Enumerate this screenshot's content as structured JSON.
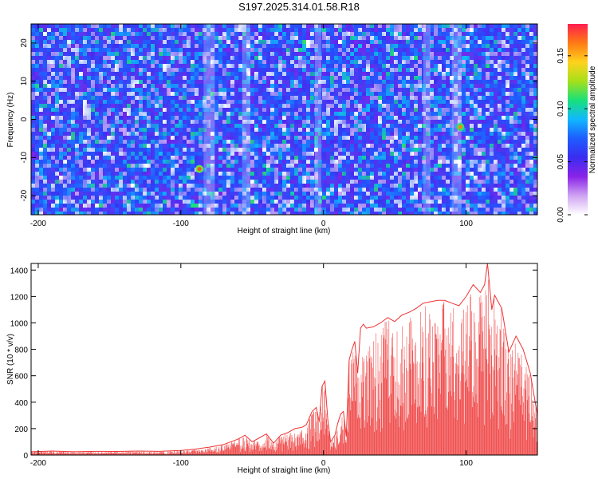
{
  "title": "S197.2025.314.01.58.R18",
  "colors": {
    "snr_line": "#ee3333",
    "spectrogram_background": "#8a22e8",
    "spectrogram_colormap": [
      "#ffffff",
      "#cfa3f2",
      "#8a22e8",
      "#3a2df0",
      "#1e5cff",
      "#10b8ff",
      "#18e07a",
      "#a6e01a",
      "#ffd21e",
      "#ff7a14",
      "#ff1e4e"
    ]
  },
  "chart_data": [
    {
      "type": "heatmap",
      "title": "",
      "xlabel": "Height of straight line (km)",
      "ylabel": "Frequency (Hz)",
      "xlim": [
        -205,
        150
      ],
      "ylim": [
        -25,
        25
      ],
      "xticks": [
        -200,
        -100,
        0,
        100
      ],
      "yticks": [
        -20,
        -10,
        0,
        10,
        20
      ],
      "colorbar": {
        "label": "Normalized spectral amplitude",
        "range": [
          0,
          0.18
        ],
        "ticks": [
          "0.00",
          "0.05",
          "0.10",
          "0.15"
        ],
        "tick_values": [
          0,
          0.05,
          0.1,
          0.15
        ]
      },
      "grid": false,
      "description_of_values": "dense speckled noise field, amplitude mostly 0.01-0.06",
      "peaks": [
        {
          "x": -87,
          "y": -13,
          "value": 0.17
        },
        {
          "x": 96,
          "y": -2,
          "value": 0.16
        },
        {
          "x": 18,
          "y": 24,
          "value": 0.06
        }
      ]
    },
    {
      "type": "line",
      "title": "",
      "xlabel": "Height of straight line (km)",
      "ylabel": "SNR (10 * v/v)",
      "xlim": [
        -205,
        150
      ],
      "ylim": [
        0,
        1450
      ],
      "xticks": [
        -200,
        -100,
        0,
        100
      ],
      "yticks": [
        0,
        200,
        400,
        600,
        800,
        1000,
        1200,
        1400
      ],
      "grid": false,
      "series": [
        {
          "x": [
            -205,
            -190,
            -175,
            -160,
            -145,
            -130,
            -115,
            -100,
            -90,
            -80,
            -70,
            -60,
            -55,
            -50,
            -45,
            -40,
            -35,
            -30,
            -25,
            -20,
            -15,
            -12,
            -8,
            -5,
            -3,
            -1,
            1,
            3,
            5,
            8,
            10,
            12,
            14,
            16,
            18,
            20,
            22,
            24,
            26,
            28,
            30,
            35,
            40,
            45,
            50,
            55,
            60,
            65,
            70,
            75,
            80,
            85,
            90,
            95,
            100,
            105,
            110,
            113,
            115,
            118,
            120,
            125,
            130,
            135,
            140,
            145,
            150
          ],
          "y": [
            25,
            30,
            25,
            28,
            27,
            30,
            28,
            35,
            45,
            60,
            80,
            120,
            150,
            100,
            130,
            160,
            90,
            150,
            170,
            200,
            210,
            230,
            330,
            360,
            250,
            520,
            560,
            270,
            100,
            150,
            240,
            310,
            330,
            140,
            720,
            800,
            860,
            620,
            960,
            990,
            960,
            970,
            1000,
            1040,
            1010,
            1060,
            1080,
            1110,
            1150,
            1160,
            1170,
            1170,
            1150,
            1130,
            1200,
            1290,
            1230,
            1290,
            1450,
            1100,
            1210,
            1110,
            780,
            900,
            800,
            620,
            300
          ]
        }
      ]
    }
  ]
}
